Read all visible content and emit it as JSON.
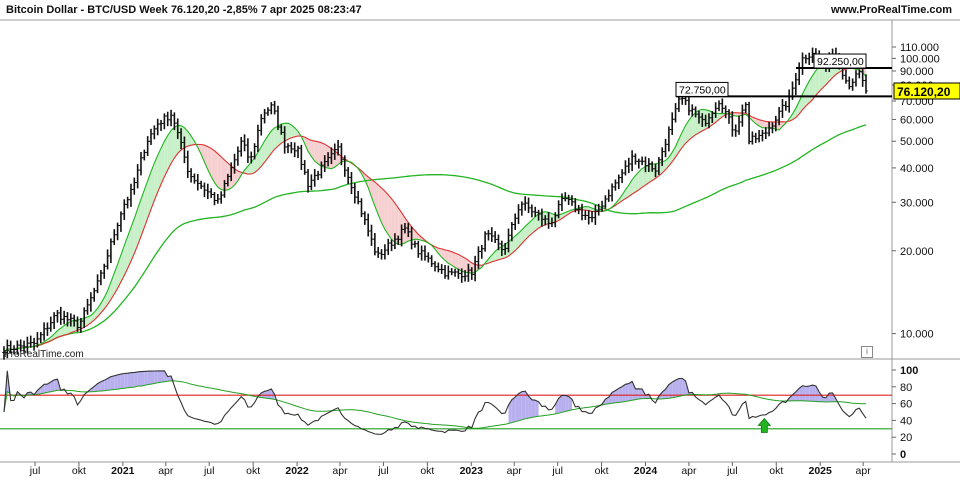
{
  "header": {
    "title": "Bitcoin Dollar - BTC/USD Week 76.120,20 -2,85% 7 apr 2025 08:23:47",
    "source": "www.ProRealTime.com"
  },
  "watermark": "ProRealTime.com",
  "colors": {
    "bar": "#111111",
    "ma_short": "#22b422",
    "ma_mid": "#e03030",
    "ma_long": "#22b422",
    "cloud_bull": "#c8f0c8",
    "cloud_bear": "#f6d0d0",
    "rsi_line": "#333333",
    "rsi_overbought_fill": "#b8b0ee",
    "rsi_upper_line": "#e02020",
    "rsi_lower_line": "#20a020",
    "arrow": "#22b422"
  },
  "chart_data": [
    {
      "type": "ohlc",
      "title": "Bitcoin Dollar - BTC/USD Week",
      "ylim": [
        5000,
        120000
      ],
      "y_ticks": [
        10000,
        20000,
        30000,
        40000,
        50000,
        60000,
        70000,
        80000,
        90000,
        100000,
        110000
      ],
      "y_tick_labels": [
        "10.000",
        "20.000",
        "30.000",
        "40.000",
        "50.000",
        "60.000",
        "70.000",
        "80.000",
        "90.000",
        "100.000",
        "110.000"
      ],
      "last_price": 76120.2,
      "last_price_label": "76.120,20",
      "levels": [
        {
          "value": 92250,
          "label": "92.250,00"
        },
        {
          "value": 72750,
          "label": "72.750,00"
        }
      ],
      "x_labels": [
        "jul",
        "okt",
        "2021",
        "apr",
        "jul",
        "okt",
        "2022",
        "apr",
        "jul",
        "okt",
        "2023",
        "apr",
        "jul",
        "okt",
        "2024",
        "apr",
        "jul",
        "okt",
        "2025",
        "apr"
      ],
      "price_anchors": [
        [
          "2020-05-01",
          8800
        ],
        [
          "2020-07-01",
          9200
        ],
        [
          "2020-08-15",
          11800
        ],
        [
          "2020-10-01",
          10700
        ],
        [
          "2020-11-15",
          16000
        ],
        [
          "2021-01-01",
          29000
        ],
        [
          "2021-01-20",
          33000
        ],
        [
          "2021-02-20",
          50000
        ],
        [
          "2021-03-15",
          58000
        ],
        [
          "2021-04-14",
          63000
        ],
        [
          "2021-05-20",
          38000
        ],
        [
          "2021-07-20",
          30000
        ],
        [
          "2021-09-07",
          50000
        ],
        [
          "2021-09-25",
          42000
        ],
        [
          "2021-10-20",
          63000
        ],
        [
          "2021-11-10",
          67000
        ],
        [
          "2021-12-05",
          49000
        ],
        [
          "2022-01-01",
          47000
        ],
        [
          "2022-01-24",
          35000
        ],
        [
          "2022-03-28",
          47000
        ],
        [
          "2022-05-12",
          29000
        ],
        [
          "2022-06-18",
          19000
        ],
        [
          "2022-08-15",
          24000
        ],
        [
          "2022-09-10",
          20000
        ],
        [
          "2022-11-10",
          16500
        ],
        [
          "2023-01-01",
          16600
        ],
        [
          "2023-02-01",
          23000
        ],
        [
          "2023-03-10",
          20000
        ],
        [
          "2023-04-14",
          30000
        ],
        [
          "2023-06-15",
          25000
        ],
        [
          "2023-07-14",
          31000
        ],
        [
          "2023-09-10",
          25800
        ],
        [
          "2023-10-24",
          34000
        ],
        [
          "2023-12-06",
          44000
        ],
        [
          "2024-01-23",
          39500
        ],
        [
          "2024-03-14",
          72000
        ],
        [
          "2024-05-01",
          58000
        ],
        [
          "2024-06-05",
          71000
        ],
        [
          "2024-07-05",
          54000
        ],
        [
          "2024-07-29",
          69000
        ],
        [
          "2024-08-05",
          50000
        ],
        [
          "2024-09-06",
          53000
        ],
        [
          "2024-10-28",
          71000
        ],
        [
          "2024-11-22",
          99000
        ],
        [
          "2024-12-17",
          106000
        ],
        [
          "2025-01-13",
          92000
        ],
        [
          "2025-01-21",
          108000
        ],
        [
          "2025-02-10",
          96000
        ],
        [
          "2025-02-28",
          80000
        ],
        [
          "2025-03-24",
          88000
        ],
        [
          "2025-04-07",
          76120
        ]
      ],
      "moving_averages": [
        {
          "period": 10,
          "color": "#22b422"
        },
        {
          "period": 20,
          "color": "#e03030"
        },
        {
          "period": 100,
          "color": "#22b422"
        }
      ]
    },
    {
      "type": "line",
      "indicator": "RSI",
      "ylim": [
        0,
        100
      ],
      "y_ticks": [
        0,
        20,
        40,
        60,
        80,
        100
      ],
      "y_tick_labels": [
        "0",
        "20",
        "40",
        "60",
        "80",
        "100"
      ],
      "upper_level": 70,
      "lower_level": 30,
      "arrow_date": "2024-09-06"
    }
  ]
}
